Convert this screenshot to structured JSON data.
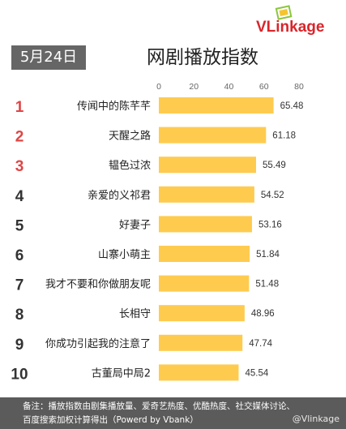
{
  "header": {
    "date": "5月24日",
    "title": "网剧播放指数",
    "brand": "VLinkage",
    "brand_colors": {
      "V": "#d9252b",
      "rest": "#d9252b"
    },
    "logo_icon": "photo-frame-icon"
  },
  "footer": {
    "note_line1": "备注：播放指数由剧集播放量、爱奇艺热度、优酷热度、社交媒体讨论、",
    "note_line2": "百度搜索加权计算得出（Powerd by Vbank）",
    "watermark": "@Vlinkage"
  },
  "colors": {
    "bar": "#ffcb4f",
    "rank_top3": "#e04545",
    "rank_other": "#333333",
    "badge_bg": "#666666",
    "footer_bg": "#5b5b5b"
  },
  "chart_data": {
    "type": "bar",
    "orientation": "horizontal",
    "title": "网剧播放指数",
    "xlim": [
      0,
      80
    ],
    "xticks": [
      "0",
      "20",
      "40",
      "60",
      "80"
    ],
    "grid": false,
    "ranks": [
      "1",
      "2",
      "3",
      "4",
      "5",
      "6",
      "7",
      "8",
      "9",
      "10"
    ],
    "categories": [
      "传闻中的陈芊芊",
      "天醒之路",
      "韫色过浓",
      "亲爱的义祁君",
      "好妻子",
      "山寨小萌主",
      "我才不要和你做朋友呢",
      "长相守",
      "你成功引起我的注意了",
      "古董局中局2"
    ],
    "values": [
      65.48,
      61.18,
      55.49,
      54.52,
      53.16,
      51.84,
      51.48,
      48.96,
      47.74,
      45.54
    ],
    "value_labels": [
      "65.48",
      "61.18",
      "55.49",
      "54.52",
      "53.16",
      "51.84",
      "51.48",
      "48.96",
      "47.74",
      "45.54"
    ]
  }
}
